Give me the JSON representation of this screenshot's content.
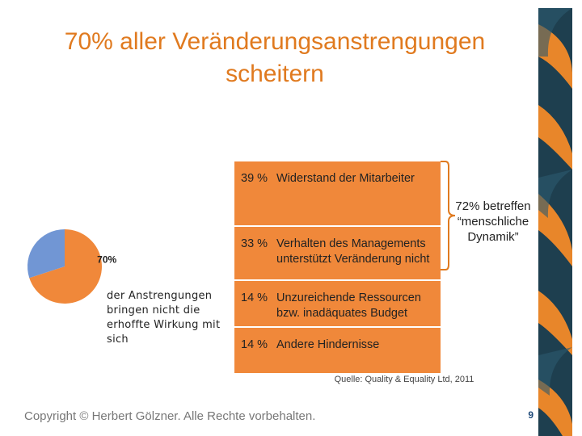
{
  "slide": {
    "title_line1": "70% aller Veränderungsanstrengungen",
    "title_line2": "scheitern",
    "copyright": "Copyright © Herbert Gölzner. Alle Rechte vorbehalten.",
    "page_number": "9"
  },
  "pie": {
    "label": "70%",
    "caption": "der Anstrengungen bringen nicht die erhoffte Wirkung mit sich"
  },
  "bracket": {
    "text": "72% betreffen “menschliche Dynamik”"
  },
  "source": "Quelle: Quality & Equality Ltd, 2011",
  "colors": {
    "orange": "#f0883a",
    "blue": "#7196d4",
    "title": "#e07a1f",
    "deco_dark": "#1e3f4f",
    "deco_orange": "#e8862a"
  },
  "chart_data": [
    {
      "type": "pie",
      "title": "",
      "slices": [
        {
          "label": "70%",
          "value": 70,
          "color": "#f0883a"
        },
        {
          "label": "",
          "value": 30,
          "color": "#7196d4"
        }
      ]
    },
    {
      "type": "bar",
      "orientation": "stacked-vertical",
      "title": "",
      "segments": [
        {
          "pct_label": "39 %",
          "text": "Widerstand der Mitarbeiter",
          "value": 39,
          "color": "#f0883a"
        },
        {
          "pct_label": "33 %",
          "text": "Verhalten des Managements unterstützt Veränderung nicht",
          "value": 33,
          "color": "#f0883a"
        },
        {
          "pct_label": "14 %",
          "text": "Unzureichende Ressourcen bzw. inadäquates Budget",
          "value": 14,
          "color": "#f0883a"
        },
        {
          "pct_label": "14 %",
          "text": "Andere Hindernisse",
          "value": 14,
          "color": "#f0883a"
        }
      ]
    }
  ]
}
